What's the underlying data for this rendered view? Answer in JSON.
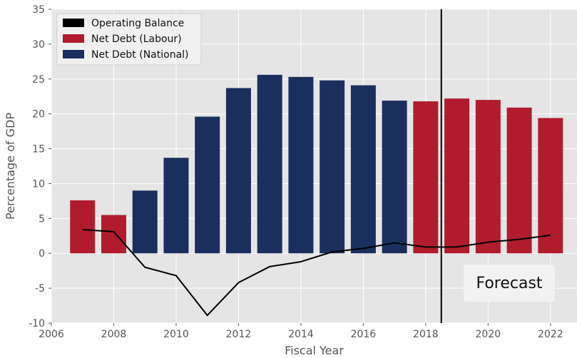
{
  "chart_data": {
    "type": "bar",
    "title": "",
    "xlabel": "Fiscal Year",
    "ylabel": "Percentage of GDP",
    "xlim": [
      2006,
      2022.85
    ],
    "ylim": [
      -10,
      35
    ],
    "xticks": [
      2006,
      2008,
      2010,
      2012,
      2014,
      2016,
      2018,
      2020,
      2022
    ],
    "yticks": [
      -10,
      -5,
      0,
      5,
      10,
      15,
      20,
      25,
      30,
      35
    ],
    "grid": true,
    "legend_position": "top-left",
    "series": [
      {
        "name": "Net Debt (Labour)",
        "kind": "bar",
        "color": "#b01c2e",
        "points": [
          {
            "x": 2007,
            "y": 7.6
          },
          {
            "x": 2008,
            "y": 5.5
          },
          {
            "x": 2018,
            "y": 21.8
          },
          {
            "x": 2019,
            "y": 22.2
          },
          {
            "x": 2020,
            "y": 22.0
          },
          {
            "x": 2021,
            "y": 20.9
          },
          {
            "x": 2022,
            "y": 19.4
          }
        ]
      },
      {
        "name": "Net Debt (National)",
        "kind": "bar",
        "color": "#1b2f5e",
        "points": [
          {
            "x": 2009,
            "y": 9.0
          },
          {
            "x": 2010,
            "y": 13.7
          },
          {
            "x": 2011,
            "y": 19.6
          },
          {
            "x": 2012,
            "y": 23.7
          },
          {
            "x": 2013,
            "y": 25.6
          },
          {
            "x": 2014,
            "y": 25.3
          },
          {
            "x": 2015,
            "y": 24.8
          },
          {
            "x": 2016,
            "y": 24.1
          },
          {
            "x": 2017,
            "y": 21.9
          }
        ]
      },
      {
        "name": "Operating Balance",
        "kind": "line",
        "color": "#000000",
        "points": [
          {
            "x": 2007,
            "y": 3.4
          },
          {
            "x": 2008,
            "y": 3.1
          },
          {
            "x": 2009,
            "y": -2.0
          },
          {
            "x": 2010,
            "y": -3.2
          },
          {
            "x": 2011,
            "y": -8.9
          },
          {
            "x": 2012,
            "y": -4.2
          },
          {
            "x": 2013,
            "y": -1.9
          },
          {
            "x": 2014,
            "y": -1.2
          },
          {
            "x": 2015,
            "y": 0.2
          },
          {
            "x": 2016,
            "y": 0.7
          },
          {
            "x": 2017,
            "y": 1.5
          },
          {
            "x": 2018,
            "y": 0.9
          },
          {
            "x": 2019,
            "y": 0.9
          },
          {
            "x": 2020,
            "y": 1.6
          },
          {
            "x": 2021,
            "y": 2.0
          },
          {
            "x": 2022,
            "y": 2.6
          }
        ]
      }
    ],
    "legend": [
      {
        "label": "Operating Balance",
        "color": "#000000"
      },
      {
        "label": "Net Debt (Labour)",
        "color": "#b01c2e"
      },
      {
        "label": "Net Debt (National)",
        "color": "#1b2f5e"
      }
    ],
    "forecast_line_x": 2018.5,
    "forecast_label": "Forecast"
  }
}
